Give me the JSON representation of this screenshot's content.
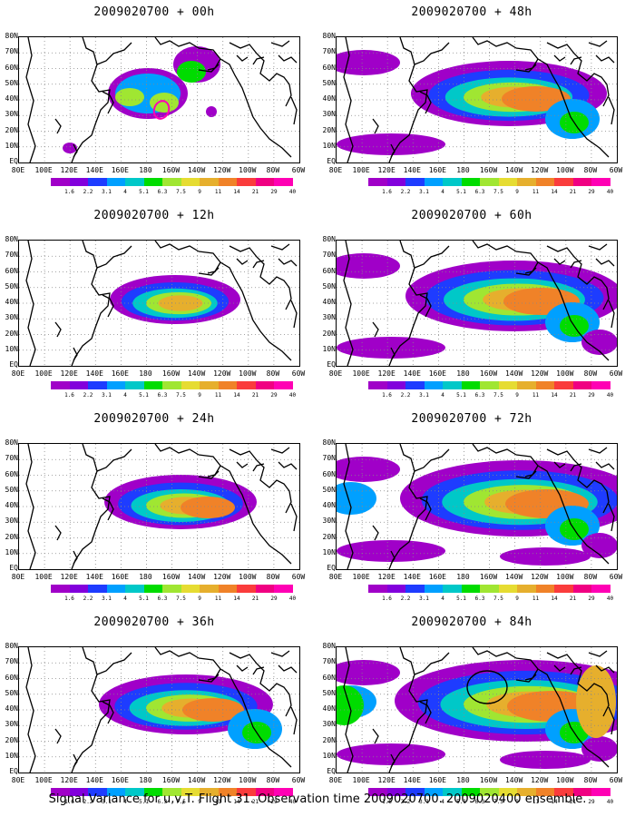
{
  "panels": [
    {
      "title": "2009020700 + 00h",
      "stage": 0
    },
    {
      "title": "2009020700 + 48h",
      "stage": 4
    },
    {
      "title": "2009020700 + 12h",
      "stage": 1
    },
    {
      "title": "2009020700 + 60h",
      "stage": 5
    },
    {
      "title": "2009020700 + 24h",
      "stage": 2
    },
    {
      "title": "2009020700 + 72h",
      "stage": 6
    },
    {
      "title": "2009020700 + 36h",
      "stage": 3
    },
    {
      "title": "2009020700 + 84h",
      "stage": 7
    }
  ],
  "lat_labels": [
    "80N",
    "70N",
    "60N",
    "50N",
    "40N",
    "30N",
    "20N",
    "10N",
    "EQ"
  ],
  "lon_labels": [
    "80E",
    "100E",
    "120E",
    "140E",
    "160E",
    "180",
    "160W",
    "140W",
    "120W",
    "100W",
    "80W",
    "60W"
  ],
  "colorbar": {
    "levels": [
      "1.6",
      "2.2",
      "3.1",
      "4",
      "5.1",
      "6.3",
      "7.5",
      "9",
      "11",
      "14",
      "21",
      "29",
      "40"
    ],
    "colors": [
      "#a000c8",
      "#8200dc",
      "#1e3cff",
      "#00a0ff",
      "#00c8c8",
      "#00dc00",
      "#a0e632",
      "#e6dc32",
      "#e6af2d",
      "#f08228",
      "#fa3c3c",
      "#f00082",
      "#ff00b4"
    ]
  },
  "footer": "Signal Variance for u,v,T. Flight 31. Observation time 2009020700. 2009020400 ensemble."
}
